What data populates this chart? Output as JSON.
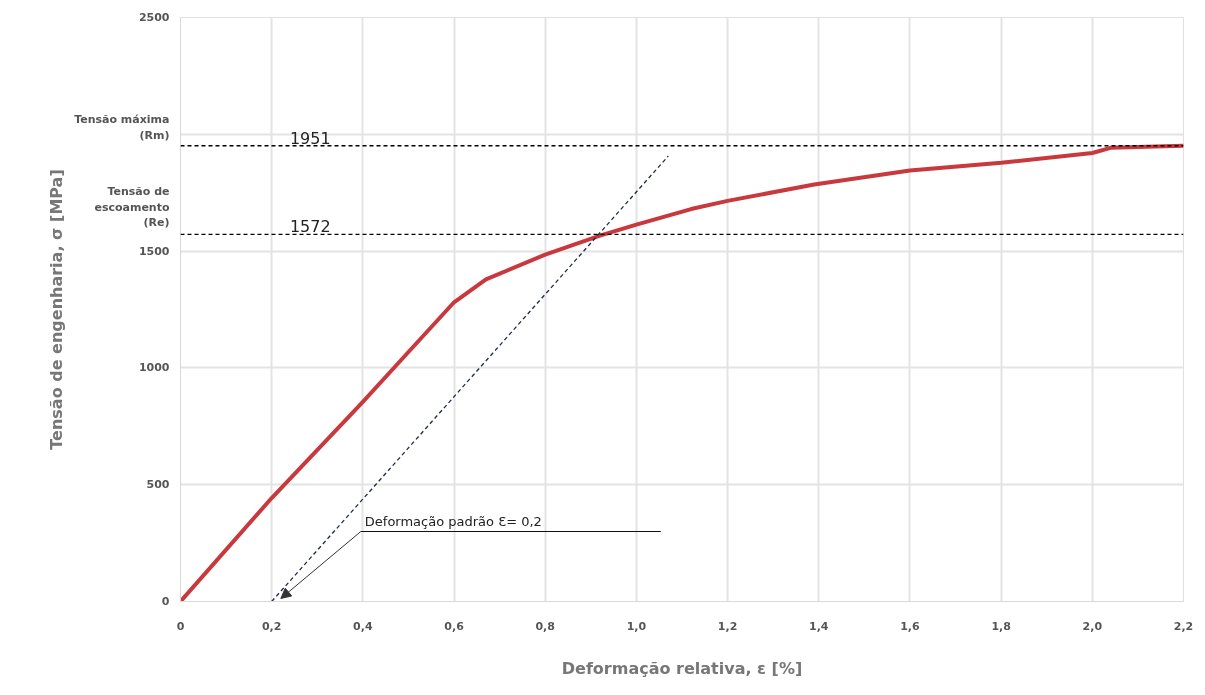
{
  "chart_data": {
    "type": "line",
    "xlabel": "Deformação relativa, ε [%]",
    "ylabel": "Tensão de engenharia, σ [MPa]",
    "series": [
      {
        "color": "#c8383c",
        "x": [
          0,
          0.2,
          0.4,
          0.5,
          0.6,
          0.67,
          0.8,
          0.92,
          1.0,
          1.12,
          1.2,
          1.39,
          1.6,
          1.8,
          2.0,
          2.04,
          2.2
        ],
        "values": [
          0,
          443,
          855,
          1068,
          1281,
          1379,
          1485,
          1566,
          1613,
          1680,
          1715,
          1785,
          1845,
          1878,
          1920,
          1942,
          1951
        ]
      },
      {
        "color": "#1f2a44",
        "line_style": "dashed",
        "x": [
          0.2,
          1.07
        ],
        "values": [
          0,
          1907
        ]
      }
    ],
    "xlim": [
      0,
      2.2
    ],
    "ylim": [
      0,
      2500
    ],
    "xticks": [
      0,
      {
        "value": 0.2,
        "label": "0,2"
      },
      {
        "value": 0.4,
        "label": "0,4"
      },
      {
        "value": 0.6,
        "label": "0,6"
      },
      {
        "value": 0.8,
        "label": "0,8"
      },
      {
        "value": 1.0,
        "label": "1,0"
      },
      {
        "value": 1.2,
        "label": "1,2"
      },
      {
        "value": 1.4,
        "label": "1,4"
      },
      {
        "value": 1.6,
        "label": "1,6"
      },
      {
        "value": 1.8,
        "label": "1,8"
      },
      {
        "value": 2.0,
        "label": "2,0"
      },
      {
        "value": 2.2,
        "label": "2,2"
      }
    ],
    "yticks": [
      0,
      500,
      1000,
      1500,
      {
        "value": 2000,
        "label": null
      },
      2500
    ],
    "grid": true,
    "marker": "none",
    "line_style": "solid",
    "ref_lines": [
      {
        "axis": "y",
        "value": 1951,
        "label": "1951",
        "color": "#000000",
        "line_style": "dashed"
      },
      {
        "axis": "y",
        "value": 1572,
        "label": "1572",
        "color": "#000000",
        "line_style": "dashed"
      }
    ],
    "annotations": [
      "Tensão máxima\n(Rm)",
      "Tensão de\nescoamento\n(Re)",
      "Deformação padrão  Ɛ= 0,2"
    ]
  }
}
